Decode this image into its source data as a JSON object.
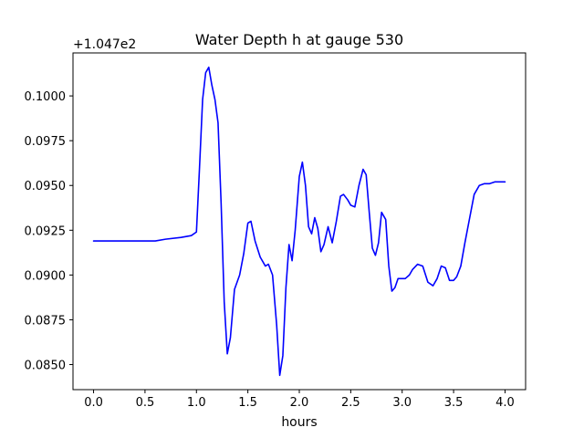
{
  "chart_data": {
    "type": "line",
    "title": "Water Depth h at gauge 530",
    "xlabel": "hours",
    "ylabel": "",
    "offset_label": "+1.047e2",
    "xlim": [
      -0.2,
      4.2
    ],
    "ylim": [
      0.0836,
      0.1024
    ],
    "x_ticks": [
      0.0,
      0.5,
      1.0,
      1.5,
      2.0,
      2.5,
      3.0,
      3.5,
      4.0
    ],
    "x_tick_labels": [
      "0.0",
      "0.5",
      "1.0",
      "1.5",
      "2.0",
      "2.5",
      "3.0",
      "3.5",
      "4.0"
    ],
    "y_ticks": [
      0.085,
      0.0875,
      0.09,
      0.0925,
      0.095,
      0.0975,
      0.1
    ],
    "y_tick_labels": [
      "0.0850",
      "0.0875",
      "0.0900",
      "0.0925",
      "0.0950",
      "0.0975",
      "0.1000"
    ],
    "grid": false,
    "series": [
      {
        "color": "#0000ff",
        "x": [
          0.0,
          0.3,
          0.6,
          0.7,
          0.85,
          0.95,
          1.0,
          1.03,
          1.06,
          1.09,
          1.12,
          1.15,
          1.18,
          1.21,
          1.24,
          1.27,
          1.3,
          1.33,
          1.37,
          1.42,
          1.46,
          1.5,
          1.53,
          1.57,
          1.62,
          1.67,
          1.7,
          1.74,
          1.78,
          1.81,
          1.84,
          1.87,
          1.9,
          1.93,
          1.96,
          2.0,
          2.03,
          2.06,
          2.09,
          2.12,
          2.15,
          2.18,
          2.21,
          2.24,
          2.28,
          2.32,
          2.36,
          2.4,
          2.43,
          2.47,
          2.5,
          2.54,
          2.58,
          2.62,
          2.65,
          2.68,
          2.71,
          2.74,
          2.77,
          2.8,
          2.84,
          2.87,
          2.9,
          2.93,
          2.96,
          3.0,
          3.03,
          3.07,
          3.1,
          3.15,
          3.2,
          3.25,
          3.3,
          3.34,
          3.38,
          3.42,
          3.46,
          3.5,
          3.53,
          3.57,
          3.61,
          3.65,
          3.7,
          3.75,
          3.8,
          3.85,
          3.9,
          3.95,
          4.0
        ],
        "y": [
          0.0919,
          0.0919,
          0.0919,
          0.092,
          0.0921,
          0.0922,
          0.0924,
          0.096,
          0.0998,
          0.1013,
          0.1016,
          0.1006,
          0.0998,
          0.0985,
          0.094,
          0.0885,
          0.0856,
          0.0865,
          0.0892,
          0.09,
          0.0912,
          0.0929,
          0.093,
          0.0919,
          0.091,
          0.0905,
          0.0906,
          0.09,
          0.0872,
          0.0844,
          0.0855,
          0.0893,
          0.0917,
          0.0908,
          0.0925,
          0.0955,
          0.0963,
          0.095,
          0.0927,
          0.0923,
          0.0932,
          0.0926,
          0.0913,
          0.0917,
          0.0927,
          0.0918,
          0.093,
          0.0944,
          0.0945,
          0.0942,
          0.0939,
          0.0938,
          0.095,
          0.0959,
          0.0956,
          0.0935,
          0.0915,
          0.0911,
          0.0918,
          0.0935,
          0.0931,
          0.0905,
          0.0891,
          0.0893,
          0.0898,
          0.0898,
          0.0898,
          0.09,
          0.0903,
          0.0906,
          0.0905,
          0.0896,
          0.0894,
          0.0898,
          0.0905,
          0.0904,
          0.0897,
          0.0897,
          0.0899,
          0.0905,
          0.0918,
          0.093,
          0.0945,
          0.095,
          0.0951,
          0.0951,
          0.0952,
          0.0952,
          0.0952
        ]
      }
    ]
  }
}
